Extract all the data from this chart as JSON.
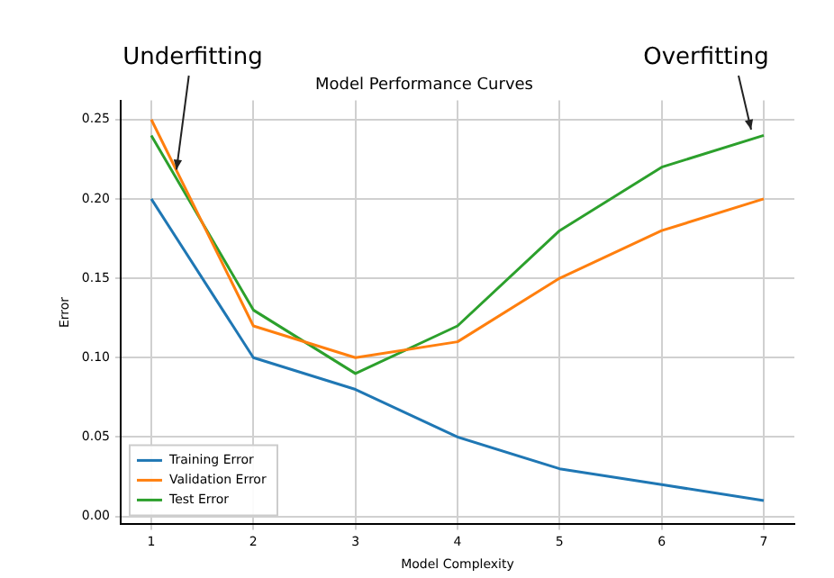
{
  "chart_data": {
    "type": "line",
    "title": "Model Performance Curves",
    "xlabel": "Model Complexity",
    "ylabel": "Error",
    "x": [
      1,
      2,
      3,
      4,
      5,
      6,
      7
    ],
    "series": [
      {
        "name": "Training Error",
        "color": "#1f77b4",
        "values": [
          0.2,
          0.1,
          0.08,
          0.05,
          0.03,
          0.02,
          0.01
        ]
      },
      {
        "name": "Validation Error",
        "color": "#ff7f0e",
        "values": [
          0.25,
          0.12,
          0.1,
          0.11,
          0.15,
          0.18,
          0.2
        ]
      },
      {
        "name": "Test Error",
        "color": "#2ca02c",
        "values": [
          0.24,
          0.13,
          0.09,
          0.12,
          0.18,
          0.22,
          0.24
        ]
      }
    ],
    "xlim": [
      0.7,
      7.3
    ],
    "xticks": [
      1,
      2,
      3,
      4,
      5,
      6,
      7
    ],
    "ylim": [
      -0.005,
      0.262
    ],
    "yticks": [
      {
        "value": 0,
        "label": "0.00"
      },
      {
        "value": 0.05,
        "label": "0.05"
      },
      {
        "value": 0.1,
        "label": "0.10"
      },
      {
        "value": 0.15,
        "label": "0.15"
      },
      {
        "value": 0.2,
        "label": "0.20"
      },
      {
        "value": 0.25,
        "label": "0.25"
      }
    ],
    "grid": true,
    "legend": "bottom left",
    "marker": "none",
    "line_style": "solid",
    "annotations": [
      {
        "text": "Underfitting",
        "x": 1.25,
        "y": 0.215
      },
      "Overfitting"
    ]
  }
}
